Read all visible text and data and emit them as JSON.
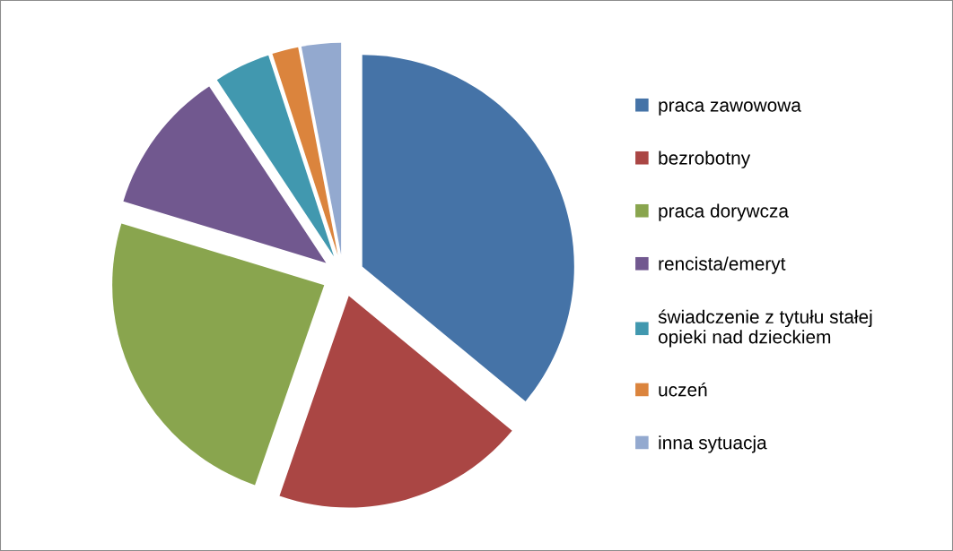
{
  "chart_data": {
    "type": "pie",
    "categories": [
      "praca zawowowa",
      "bezrobotny",
      "praca dorywcza",
      "rencista/emeryt",
      "świadczenie z tytułu stałej opieki nad dzieckiem",
      "uczeń",
      "inna sytuacja"
    ],
    "values": [
      36,
      19.3,
      24.4,
      11,
      4.3,
      2,
      3
    ],
    "colors": [
      "#4573a7",
      "#aa4644",
      "#89a54e",
      "#71588f",
      "#4198af",
      "#db843d",
      "#93a9cf"
    ],
    "legend": "right"
  }
}
